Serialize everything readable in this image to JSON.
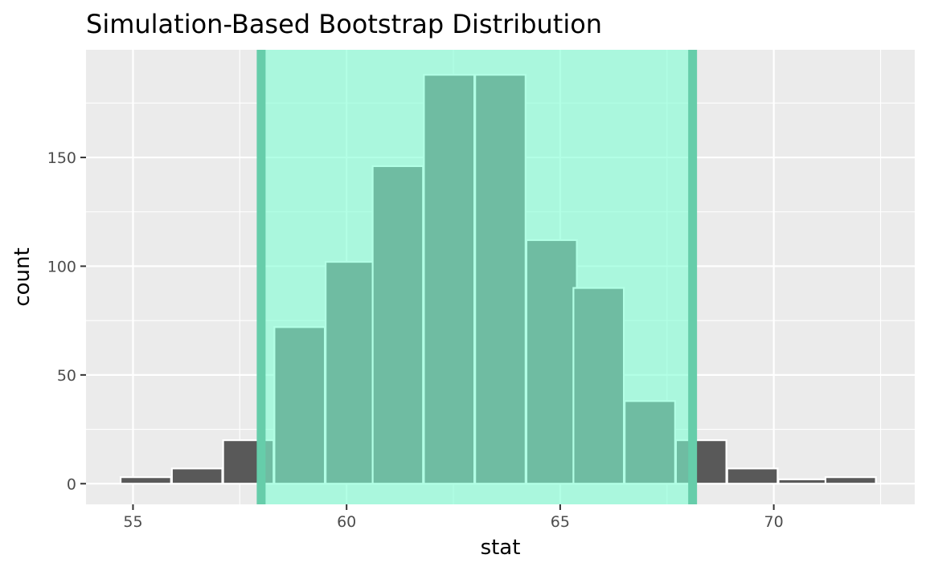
{
  "chart_data": {
    "type": "bar",
    "title": "Simulation-Based Bootstrap Distribution",
    "xlabel": "stat",
    "ylabel": "count",
    "xlim": [
      53.9,
      73.3
    ],
    "ylim": [
      -9.5,
      199.5
    ],
    "x_ticks": [
      55,
      60,
      65,
      70
    ],
    "y_ticks": [
      0,
      50,
      100,
      150
    ],
    "bin_width": 1.18,
    "bins": [
      {
        "center": 55.3,
        "count": 3
      },
      {
        "center": 56.5,
        "count": 7
      },
      {
        "center": 57.7,
        "count": 20
      },
      {
        "center": 58.9,
        "count": 72
      },
      {
        "center": 60.1,
        "count": 102
      },
      {
        "center": 61.2,
        "count": 146
      },
      {
        "center": 62.4,
        "count": 188
      },
      {
        "center": 63.6,
        "count": 188
      },
      {
        "center": 64.8,
        "count": 112
      },
      {
        "center": 65.9,
        "count": 90
      },
      {
        "center": 67.1,
        "count": 38
      },
      {
        "center": 68.3,
        "count": 20
      },
      {
        "center": 69.5,
        "count": 7
      },
      {
        "center": 70.7,
        "count": 2
      },
      {
        "center": 71.8,
        "count": 3
      }
    ],
    "confidence_interval": {
      "lower": 58.0,
      "upper": 68.1
    },
    "grid": true,
    "colors": {
      "panel_background": "#ebebeb",
      "gridline": "#ffffff",
      "bar_fill": "#595959",
      "bar_outline": "#ffffff",
      "interval_shade": "#7fffd4",
      "interval_edge": "#66cdaa"
    }
  }
}
